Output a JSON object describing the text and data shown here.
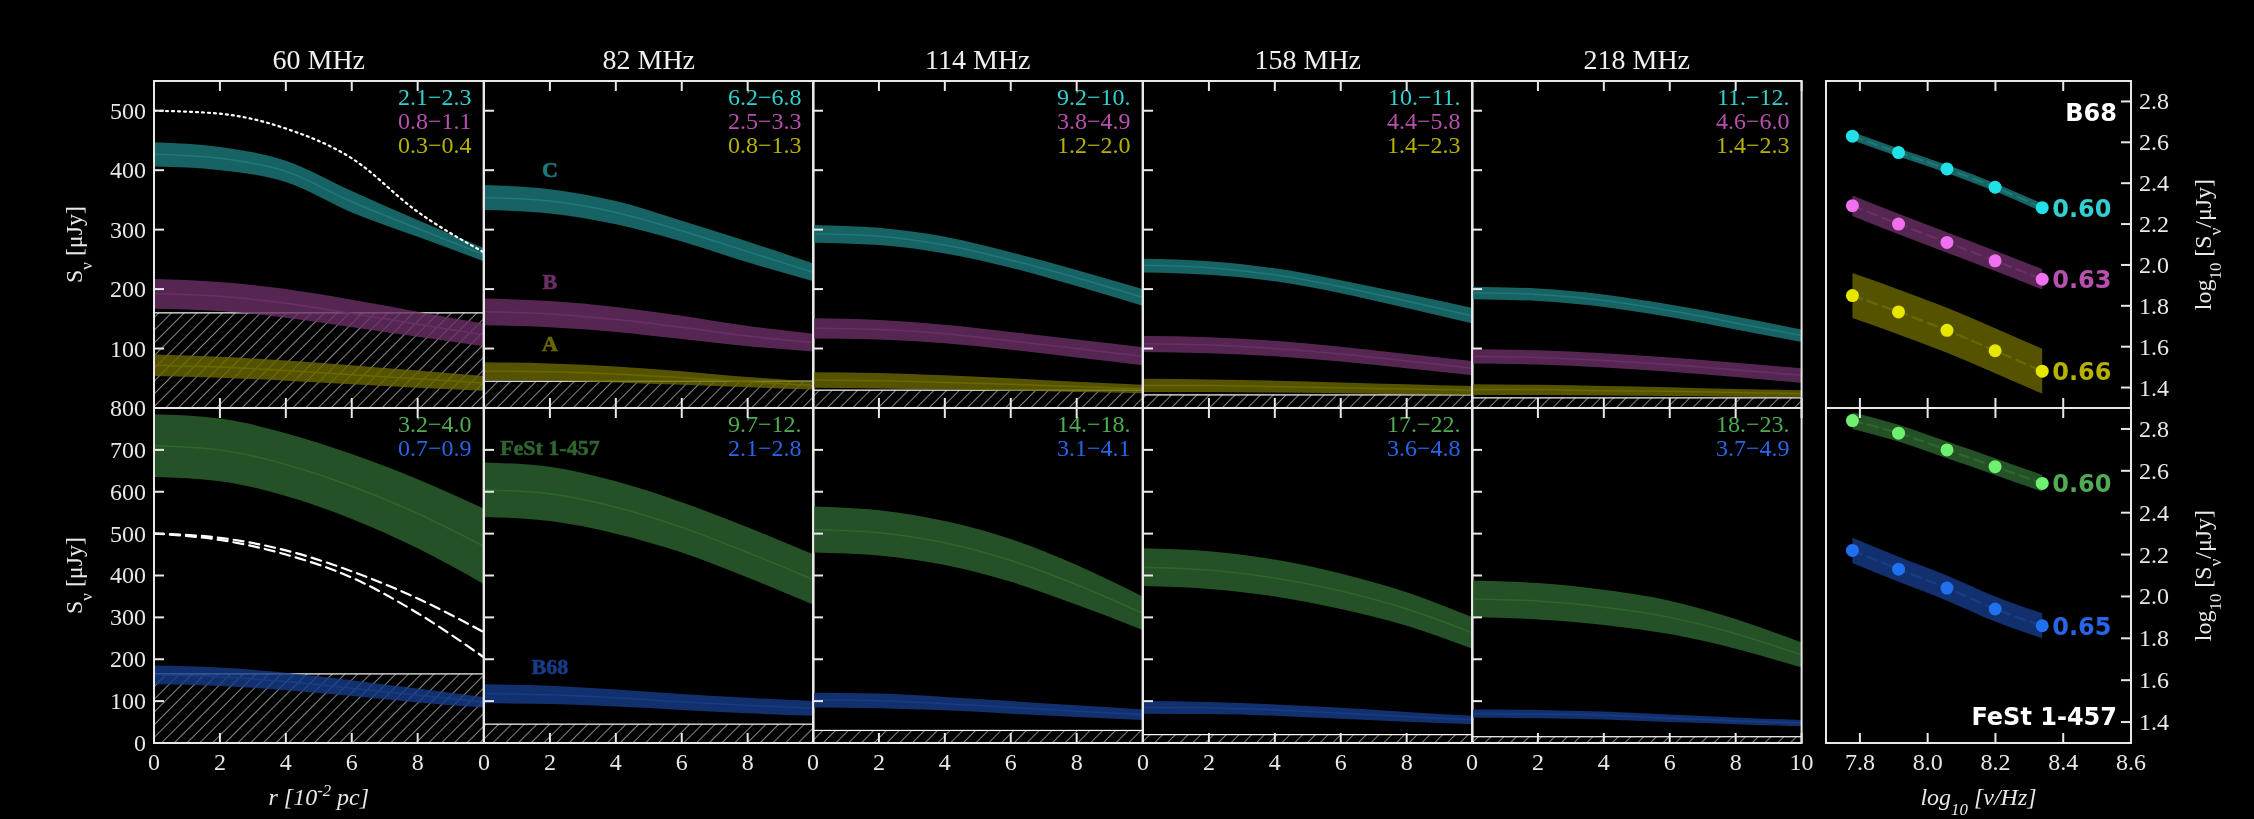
{
  "chart_data": [
    {
      "type": "line",
      "title": "60 MHz",
      "ylabel": "S$_{ν}$ [μJy]",
      "x": [
        0,
        2,
        4,
        6,
        8,
        10
      ],
      "xlim": [
        0,
        10
      ],
      "ylim": [
        0,
        550
      ],
      "yticks": [
        100,
        200,
        300,
        400,
        500
      ],
      "tick_labels": "y",
      "annotations": [
        "2.1−2.3",
        "0.8−1.1",
        "0.3−0.4"
      ],
      "bands": [
        {
          "axis": "y",
          "from": 0,
          "to": 160,
          "color": "#ffffff"
        }
      ],
      "series": [
        {
          "color": "#1d7a7a",
          "values": [
            427,
            420,
            398,
            347,
            302,
            258
          ],
          "lower": [
            406,
            400,
            380,
            329,
            288,
            247
          ],
          "upper": [
            447,
            439,
            416,
            365,
            316,
            269
          ]
        },
        {
          "color": "#6b2f66",
          "values": [
            192,
            188,
            176,
            159,
            141,
            123
          ],
          "lower": [
            167,
            163,
            152,
            136,
            120,
            104
          ],
          "upper": [
            217,
            212,
            200,
            182,
            162,
            142
          ]
        },
        {
          "color": "#6b6800",
          "values": [
            72,
            69,
            63,
            56,
            49,
            42
          ],
          "lower": [
            54,
            51,
            46,
            40,
            34,
            29
          ],
          "upper": [
            90,
            86,
            80,
            72,
            63,
            54
          ]
        },
        {
          "color": "#ffffff",
          "line_style": "dotted",
          "values": [
            500,
            495,
            470,
            420,
            330,
            262
          ]
        }
      ]
    },
    {
      "type": "line",
      "title": "82 MHz",
      "x": [
        0,
        2,
        4,
        6,
        8,
        10
      ],
      "xlim": [
        0,
        10
      ],
      "ylim": [
        0,
        550
      ],
      "tick_labels": false,
      "annotations": [
        "6.2−6.8",
        "2.5−3.3",
        "0.8−1.3"
      ],
      "bands": [
        {
          "axis": "y",
          "from": 0,
          "to": 45,
          "color": "#ffffff"
        }
      ],
      "series": [
        {
          "name": "C",
          "color": "#1d7a7a",
          "values": [
            354,
            348,
            329,
            298,
            263,
            228
          ],
          "lower": [
            333,
            327,
            309,
            280,
            245,
            213
          ],
          "upper": [
            375,
            368,
            348,
            315,
            280,
            243
          ]
        },
        {
          "name": "B",
          "color": "#6b2f66",
          "values": [
            162,
            158,
            149,
            136,
            121,
            110
          ],
          "lower": [
            139,
            136,
            128,
            116,
            104,
            95
          ],
          "upper": [
            184,
            180,
            170,
            155,
            138,
            125
          ]
        },
        {
          "name": "A",
          "color": "#6b6800",
          "values": [
            62,
            61,
            57,
            51,
            44,
            38
          ],
          "lower": [
            47,
            46,
            43,
            39,
            35,
            31
          ],
          "upper": [
            77,
            75,
            70,
            62,
            52,
            45
          ]
        }
      ]
    },
    {
      "type": "line",
      "title": "114 MHz",
      "x": [
        0,
        2,
        4,
        6,
        8,
        10
      ],
      "xlim": [
        0,
        10
      ],
      "ylim": [
        0,
        550
      ],
      "tick_labels": false,
      "annotations": [
        "9.2−10.",
        "3.8−4.9",
        "1.2−2.0"
      ],
      "bands": [
        {
          "axis": "y",
          "from": 0,
          "to": 30,
          "color": "#ffffff"
        }
      ],
      "series": [
        {
          "color": "#1d7a7a",
          "values": [
            293,
            289,
            274,
            249,
            219,
            186
          ],
          "lower": [
            278,
            274,
            260,
            236,
            205,
            172
          ],
          "upper": [
            308,
            303,
            288,
            262,
            232,
            200
          ]
        },
        {
          "color": "#6b2f66",
          "values": [
            134,
            132,
            125,
            113,
            100,
            87
          ],
          "lower": [
            117,
            115,
            109,
            98,
            85,
            72
          ],
          "upper": [
            151,
            148,
            140,
            128,
            115,
            102
          ]
        },
        {
          "color": "#6b6800",
          "values": [
            47,
            46,
            43,
            40,
            36,
            32
          ],
          "lower": [
            34,
            33,
            31,
            29,
            27,
            25
          ],
          "upper": [
            60,
            59,
            55,
            50,
            44,
            39
          ]
        }
      ]
    },
    {
      "type": "line",
      "title": "158 MHz",
      "x": [
        0,
        2,
        4,
        6,
        8,
        10
      ],
      "xlim": [
        0,
        10
      ],
      "ylim": [
        0,
        550
      ],
      "tick_labels": false,
      "annotations": [
        "10.−11.",
        "4.4−5.8",
        "1.4−2.3"
      ],
      "bands": [
        {
          "axis": "y",
          "from": 0,
          "to": 22,
          "color": "#ffffff"
        }
      ],
      "series": [
        {
          "color": "#1d7a7a",
          "values": [
            240,
            236,
            224,
            204,
            180,
            155
          ],
          "lower": [
            228,
            224,
            213,
            193,
            168,
            142
          ],
          "upper": [
            251,
            247,
            235,
            215,
            192,
            168
          ]
        },
        {
          "color": "#6b2f66",
          "values": [
            108,
            106,
            100,
            91,
            79,
            67
          ],
          "lower": [
            94,
            92,
            87,
            78,
            67,
            55
          ],
          "upper": [
            121,
            119,
            113,
            103,
            91,
            79
          ]
        },
        {
          "color": "#6b6800",
          "values": [
            38,
            38,
            36,
            34,
            32,
            30
          ],
          "lower": [
            27,
            27,
            26,
            25,
            23,
            22
          ],
          "upper": [
            49,
            48,
            46,
            43,
            40,
            37
          ]
        }
      ]
    },
    {
      "type": "line",
      "title": "218 MHz",
      "x": [
        0,
        2,
        4,
        6,
        8,
        10
      ],
      "xlim": [
        0,
        10
      ],
      "ylim": [
        0,
        550
      ],
      "tick_labels": false,
      "annotations": [
        "11.−12.",
        "4.6−6.0",
        "1.4−2.3"
      ],
      "bands": [
        {
          "axis": "y",
          "from": 0,
          "to": 17,
          "color": "#ffffff"
        }
      ],
      "series": [
        {
          "color": "#1d7a7a",
          "values": [
            194,
            191,
            181,
            164,
            143,
            122
          ],
          "lower": [
            183,
            180,
            170,
            153,
            132,
            111
          ],
          "upper": [
            204,
            201,
            191,
            174,
            154,
            132
          ]
        },
        {
          "color": "#6b2f66",
          "values": [
            87,
            85,
            80,
            73,
            64,
            55
          ],
          "lower": [
            75,
            73,
            68,
            61,
            52,
            42
          ],
          "upper": [
            99,
            97,
            92,
            85,
            76,
            67
          ]
        },
        {
          "color": "#6b6800",
          "values": [
            31,
            31,
            29,
            28,
            26,
            24
          ],
          "lower": [
            22,
            22,
            21,
            20,
            19,
            18
          ],
          "upper": [
            40,
            39,
            37,
            35,
            32,
            30
          ]
        }
      ]
    },
    {
      "type": "line",
      "y2label": "log$_{10}$ [S$_{ν}$/μJy]",
      "x": [
        7.778,
        7.914,
        8.057,
        8.199,
        8.338
      ],
      "xlim": [
        7.7,
        8.6
      ],
      "y2lim": [
        1.3,
        2.9
      ],
      "y2ticks": [
        1.4,
        1.6,
        1.8,
        {
          "value": 2,
          "label": "2.0"
        },
        2.2,
        2.4,
        2.6,
        2.8
      ],
      "tick_labels": "y2",
      "annotations": [
        "0.60",
        "0.63",
        "0.66",
        "B68"
      ],
      "series": [
        {
          "axis": "y2",
          "color": "#1d7a7a",
          "line_style": "dashed",
          "values": [
            2.63,
            2.55,
            2.47,
            2.38,
            2.28
          ],
          "lower": [
            2.61,
            2.53,
            2.45,
            2.36,
            2.26
          ],
          "upper": [
            2.65,
            2.57,
            2.49,
            2.4,
            2.3
          ]
        },
        {
          "axis": "y2",
          "color": "#6b2f66",
          "line_style": "dashed",
          "values": [
            2.29,
            2.2,
            2.11,
            2.02,
            1.93
          ],
          "lower": [
            2.24,
            2.15,
            2.06,
            1.97,
            1.88
          ],
          "upper": [
            2.34,
            2.25,
            2.16,
            2.07,
            1.98
          ]
        },
        {
          "axis": "y2",
          "color": "#6b6800",
          "line_style": "dashed",
          "values": [
            1.85,
            1.77,
            1.68,
            1.58,
            1.48
          ],
          "lower": [
            1.74,
            1.66,
            1.57,
            1.47,
            1.37
          ],
          "upper": [
            1.96,
            1.88,
            1.79,
            1.69,
            1.59
          ]
        },
        {
          "axis": "y2",
          "type": "scatter",
          "marker": "circle",
          "color": "#22e0e8",
          "values": [
            2.63,
            2.55,
            2.47,
            2.38,
            2.28
          ]
        },
        {
          "axis": "y2",
          "type": "scatter",
          "marker": "circle",
          "color": "#f070f0",
          "values": [
            2.29,
            2.2,
            2.11,
            2.02,
            1.93
          ]
        },
        {
          "axis": "y2",
          "type": "scatter",
          "marker": "circle",
          "color": "#e6e600",
          "values": [
            1.85,
            1.77,
            1.68,
            1.58,
            1.48
          ]
        }
      ]
    },
    {
      "type": "line",
      "ylabel": "S$_{ν}$ [μJy]",
      "xlabel": "r [10$^{-2}$ pc]",
      "x": [
        0,
        2,
        4,
        6,
        8,
        10
      ],
      "xlim": [
        0,
        10
      ],
      "ylim": [
        0,
        800
      ],
      "xticks": [
        0,
        2,
        4,
        6,
        8
      ],
      "yticks": [
        0,
        100,
        200,
        300,
        400,
        500,
        600,
        700,
        800
      ],
      "annotations": [
        "3.2−4.0",
        "0.7−0.9"
      ],
      "bands": [
        {
          "axis": "y",
          "from": 0,
          "to": 165,
          "color": "#ffffff"
        }
      ],
      "series": [
        {
          "color": "#2e6530",
          "values": [
            710,
            700,
            665,
            613,
            548,
            470
          ],
          "lower": [
            635,
            625,
            590,
            535,
            465,
            380
          ],
          "upper": [
            785,
            775,
            740,
            690,
            630,
            560
          ]
        },
        {
          "color": "#173c88",
          "values": [
            163,
            158,
            147,
            131,
            114,
            98
          ],
          "lower": [
            140,
            136,
            126,
            112,
            97,
            85
          ],
          "upper": [
            185,
            180,
            168,
            150,
            130,
            110
          ]
        },
        {
          "color": "#ffffff",
          "line_style": "dashed",
          "values": [
            500,
            490,
            460,
            410,
            345,
            265
          ]
        },
        {
          "color": "#ffffff",
          "line_style": "dashed",
          "values": [
            500,
            485,
            450,
            395,
            310,
            205
          ]
        }
      ]
    },
    {
      "type": "line",
      "x": [
        0,
        2,
        4,
        6,
        8,
        10
      ],
      "xlim": [
        0,
        10
      ],
      "ylim": [
        0,
        800
      ],
      "xticks": [
        0,
        2,
        4,
        6,
        8
      ],
      "tick_labels": "x",
      "annotations": [
        "9.7−12.",
        "2.1−2.8"
      ],
      "bands": [
        {
          "axis": "y",
          "from": 0,
          "to": 45,
          "color": "#ffffff"
        }
      ],
      "series": [
        {
          "name": "FeSt 1-457",
          "color": "#2e6530",
          "values": [
            605,
            595,
            563,
            515,
            455,
            390
          ],
          "lower": [
            540,
            530,
            500,
            455,
            395,
            330
          ],
          "upper": [
            670,
            660,
            625,
            575,
            515,
            450
          ]
        },
        {
          "name": "B68",
          "color": "#173c88",
          "values": [
            118,
            115,
            108,
            98,
            90,
            83
          ],
          "lower": [
            95,
            93,
            87,
            79,
            71,
            65
          ],
          "upper": [
            140,
            137,
            128,
            117,
            108,
            100
          ]
        }
      ]
    },
    {
      "type": "line",
      "x": [
        0,
        2,
        4,
        6,
        8,
        10
      ],
      "xlim": [
        0,
        10
      ],
      "ylim": [
        0,
        800
      ],
      "xticks": [
        0,
        2,
        4,
        6,
        8
      ],
      "tick_labels": "x",
      "annotations": [
        "14.−18.",
        "3.1−4.1"
      ],
      "bands": [
        {
          "axis": "y",
          "from": 0,
          "to": 30,
          "color": "#ffffff"
        }
      ],
      "series": [
        {
          "color": "#2e6530",
          "values": [
            510,
            502,
            478,
            436,
            378,
            310
          ],
          "lower": [
            455,
            448,
            425,
            385,
            330,
            270
          ],
          "upper": [
            565,
            556,
            530,
            487,
            425,
            350
          ]
        },
        {
          "color": "#173c88",
          "values": [
            103,
            101,
            94,
            85,
            76,
            68
          ],
          "lower": [
            85,
            83,
            78,
            70,
            62,
            55
          ],
          "upper": [
            120,
            118,
            110,
            100,
            90,
            80
          ]
        }
      ]
    },
    {
      "type": "line",
      "x": [
        0,
        2,
        4,
        6,
        8,
        10
      ],
      "xlim": [
        0,
        10
      ],
      "ylim": [
        0,
        800
      ],
      "xticks": [
        0,
        2,
        4,
        6,
        8
      ],
      "tick_labels": "x",
      "annotations": [
        "17.−22.",
        "3.6−4.8"
      ],
      "bands": [
        {
          "axis": "y",
          "from": 0,
          "to": 20,
          "color": "#ffffff"
        }
      ],
      "series": [
        {
          "color": "#2e6530",
          "values": [
            420,
            413,
            394,
            363,
            320,
            263
          ],
          "lower": [
            375,
            368,
            350,
            320,
            280,
            225
          ],
          "upper": [
            465,
            458,
            438,
            405,
            360,
            300
          ]
        },
        {
          "color": "#173c88",
          "values": [
            85,
            84,
            79,
            71,
            63,
            55
          ],
          "lower": [
            70,
            69,
            65,
            58,
            51,
            45
          ],
          "upper": [
            100,
            98,
            92,
            84,
            74,
            65
          ]
        }
      ]
    },
    {
      "type": "line",
      "x": [
        0,
        2,
        4,
        6,
        8,
        10
      ],
      "xlim": [
        0,
        10
      ],
      "ylim": [
        0,
        800
      ],
      "xticks": [
        0,
        2,
        4,
        6,
        8,
        10
      ],
      "tick_labels": "x",
      "annotations": [
        "18.−23.",
        "3.7−4.9"
      ],
      "bands": [
        {
          "axis": "y",
          "from": 0,
          "to": 15,
          "color": "#ffffff"
        }
      ],
      "series": [
        {
          "color": "#2e6530",
          "values": [
            344,
            339,
            324,
            300,
            261,
            210
          ],
          "lower": [
            300,
            295,
            282,
            260,
            225,
            180
          ],
          "upper": [
            388,
            382,
            366,
            340,
            296,
            240
          ]
        },
        {
          "color": "#173c88",
          "values": [
            70,
            69,
            66,
            59,
            53,
            48
          ],
          "lower": [
            60,
            59,
            56,
            50,
            45,
            40
          ],
          "upper": [
            80,
            79,
            75,
            68,
            61,
            55
          ]
        }
      ]
    },
    {
      "type": "line",
      "xlabel": "log$_{10}$ [ν/Hz]",
      "y2label": "log$_{10}$ [S$_{ν}$/μJy]",
      "x": [
        7.778,
        7.914,
        8.057,
        8.199,
        8.338
      ],
      "xlim": [
        7.7,
        8.6
      ],
      "xticks": [
        7.8,
        {
          "value": 8,
          "label": "8.0"
        },
        8.2,
        8.4,
        8.6
      ],
      "y2lim": [
        1.3,
        2.9
      ],
      "y2ticks": [
        1.4,
        1.6,
        1.8,
        {
          "value": 2,
          "label": "2.0"
        },
        2.2,
        2.4,
        2.6,
        2.8
      ],
      "annotations": [
        "0.60",
        "0.65",
        "FeSt 1-457"
      ],
      "series": [
        {
          "axis": "y2",
          "color": "#2e6530",
          "line_style": "dashed",
          "values": [
            2.84,
            2.78,
            2.7,
            2.62,
            2.54
          ],
          "lower": [
            2.8,
            2.74,
            2.66,
            2.58,
            2.5
          ],
          "upper": [
            2.88,
            2.82,
            2.74,
            2.66,
            2.58
          ]
        },
        {
          "axis": "y2",
          "color": "#173c88",
          "line_style": "dashed",
          "values": [
            2.22,
            2.13,
            2.04,
            1.94,
            1.86
          ],
          "lower": [
            2.16,
            2.07,
            1.98,
            1.88,
            1.8
          ],
          "upper": [
            2.28,
            2.19,
            2.1,
            2.0,
            1.92
          ]
        },
        {
          "axis": "y2",
          "type": "scatter",
          "marker": "circle",
          "color": "#70f070",
          "values": [
            2.84,
            2.78,
            2.7,
            2.62,
            2.54
          ]
        },
        {
          "axis": "y2",
          "type": "scatter",
          "marker": "circle",
          "color": "#2070f0",
          "values": [
            2.22,
            2.13,
            2.04,
            1.94,
            1.86
          ]
        }
      ]
    }
  ]
}
